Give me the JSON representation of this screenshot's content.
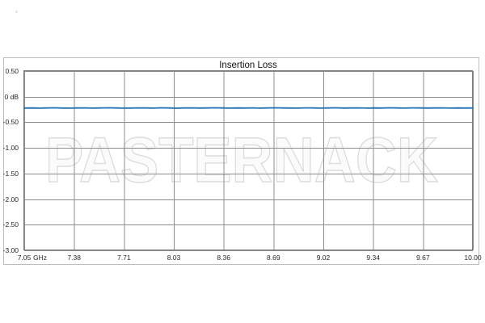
{
  "watermark": {
    "text": "PASTERNACK",
    "outline_color": "#dcdcdc",
    "fill_color": "#fbfbfb"
  },
  "colors": {
    "background": "#ffffff",
    "frame_border": "#bdbdbd",
    "plot_border": "#7d7d7d",
    "gridline": "#8c8c8c",
    "label_text": "#262626",
    "line": "#2273b8"
  },
  "chart_data": {
    "type": "line",
    "title": "Insertion Loss",
    "xlabel": "",
    "ylabel": "",
    "x_unit_label": "GHz",
    "xlim": [
      7.05,
      10.0
    ],
    "ylim": [
      -3.0,
      0.5
    ],
    "grid": true,
    "legend": "none",
    "x_ticks": [
      7.05,
      7.38,
      7.71,
      8.03,
      8.36,
      8.69,
      9.02,
      9.34,
      9.67,
      10.0
    ],
    "x_tick_labels": [
      "7.05",
      "7.38",
      "7.71",
      "8.03",
      "8.36",
      "8.69",
      "9.02",
      "9.34",
      "9.67",
      "10.00"
    ],
    "y_ticks": [
      0.5,
      0.0,
      -0.5,
      -1.0,
      -1.5,
      -2.0,
      -2.5,
      -3.0
    ],
    "y_tick_labels": [
      "0.50",
      "0 dB",
      "-0.50",
      "-1.00",
      "-1.50",
      "-2.00",
      "-2.50",
      "-3.00"
    ],
    "series": [
      {
        "name": "Insertion Loss",
        "color": "#2273b8",
        "x_start": 7.05,
        "x_end": 10.0,
        "values": [
          -0.222,
          -0.22,
          -0.223,
          -0.221,
          -0.218,
          -0.222,
          -0.224,
          -0.22,
          -0.219,
          -0.223,
          -0.221,
          -0.217,
          -0.22,
          -0.224,
          -0.222,
          -0.219,
          -0.221,
          -0.223,
          -0.218,
          -0.22,
          -0.225,
          -0.221,
          -0.219,
          -0.222,
          -0.22,
          -0.217,
          -0.221,
          -0.224,
          -0.22,
          -0.222,
          -0.219,
          -0.223,
          -0.221,
          -0.218,
          -0.22,
          -0.222,
          -0.224,
          -0.219,
          -0.221,
          -0.223,
          -0.22,
          -0.218,
          -0.222,
          -0.221,
          -0.219,
          -0.224,
          -0.22,
          -0.222,
          -0.218,
          -0.221,
          -0.223,
          -0.219,
          -0.22,
          -0.222,
          -0.221,
          -0.219,
          -0.223,
          -0.22,
          -0.222,
          -0.221
        ]
      }
    ]
  }
}
